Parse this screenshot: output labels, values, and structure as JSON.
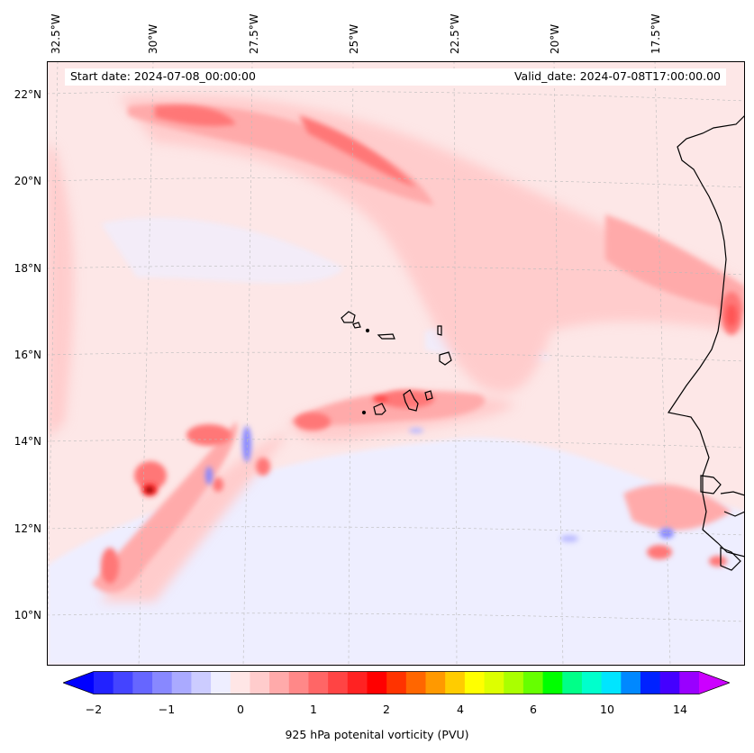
{
  "map": {
    "longitude_labels": [
      "32.5°W",
      "30°W",
      "27.5°W",
      "25°W",
      "22.5°W",
      "20°W",
      "17.5°W"
    ],
    "latitude_labels": [
      "22°N",
      "20°N",
      "18°N",
      "16°N",
      "14°N",
      "12°N",
      "10°N"
    ],
    "background_color": "#fde7e7",
    "land_color": "#ffffff",
    "coastline_color": "#000000"
  },
  "info": {
    "start_date": "Start date: 2024-07-08_00:00:00",
    "valid_date": "Valid_date: 2024-07-08T17:00:00.00"
  },
  "colorbar": {
    "label": "925 hPa potenital vorticity (PVU)",
    "tick_labels": [
      "−2",
      "−1",
      "0",
      "1",
      "2",
      "4",
      "6",
      "10",
      "14"
    ],
    "colors": [
      "#0000ff",
      "#2222ff",
      "#4444ff",
      "#6666ff",
      "#8888ff",
      "#aaaaff",
      "#ccccff",
      "#eeeeff",
      "#ffe6e6",
      "#ffcccc",
      "#ffaaaa",
      "#ff8888",
      "#ff6666",
      "#ff4444",
      "#ff2222",
      "#ff0000",
      "#ff3300",
      "#ff6600",
      "#ff9900",
      "#ffcc00",
      "#ffff00",
      "#ddff00",
      "#aaff00",
      "#66ff00",
      "#00ff00",
      "#00ff88",
      "#00ffcc",
      "#00e5ff",
      "#0088ff",
      "#0022ff",
      "#4400ff",
      "#9900ff",
      "#cc00ff"
    ]
  }
}
